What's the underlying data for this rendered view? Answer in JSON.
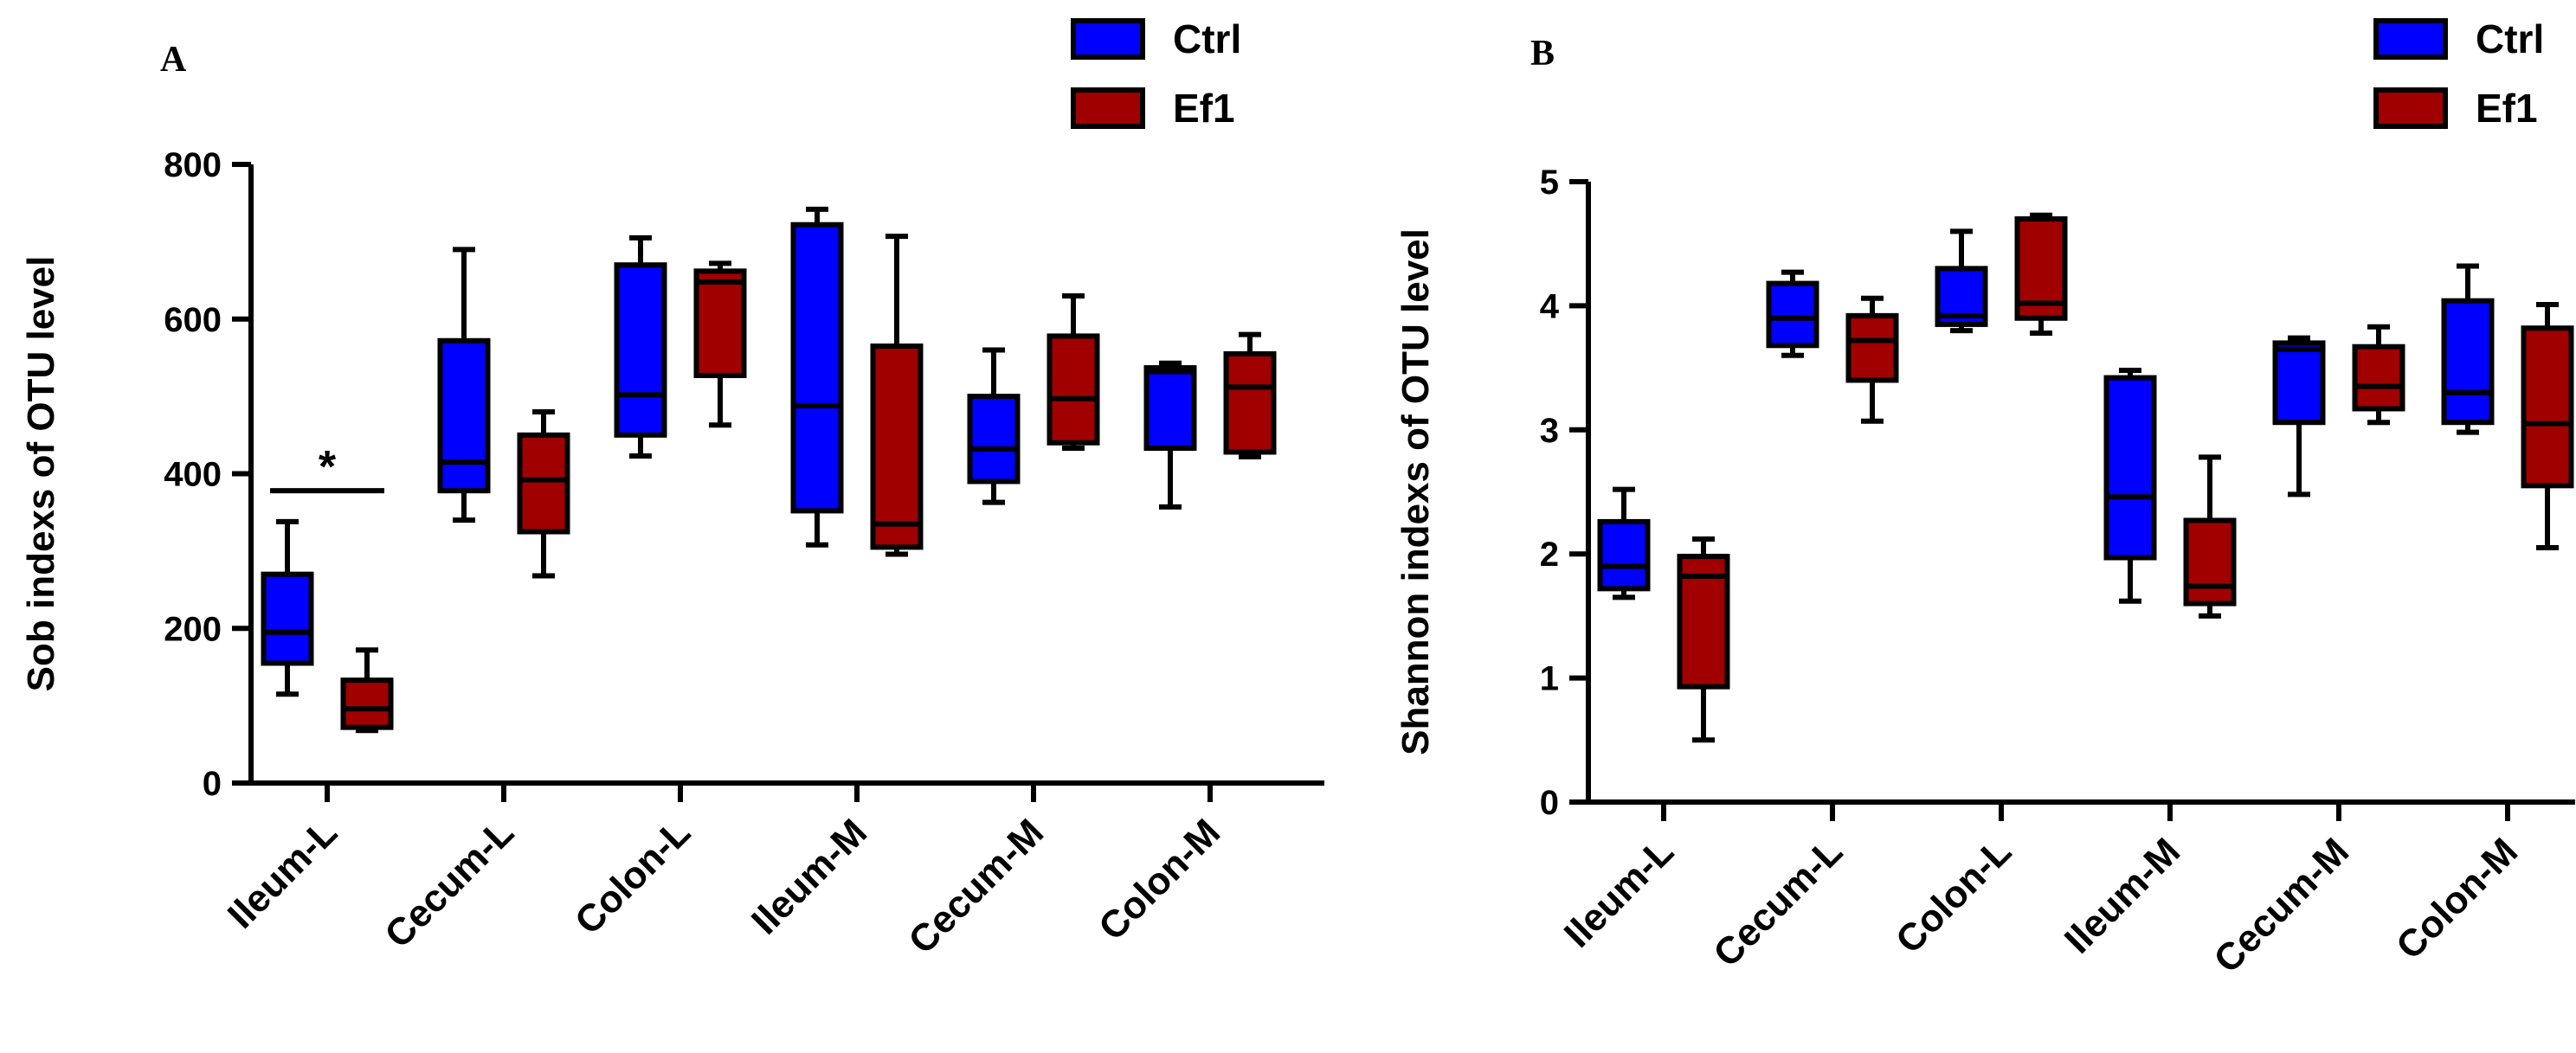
{
  "chart_data": [
    {
      "type": "boxplot",
      "panel": "A",
      "ylabel": "Sob indexs of OTU level",
      "ylim": [
        0,
        800
      ],
      "yticks": [
        0,
        200,
        400,
        600,
        800
      ],
      "categories": [
        "Ileum-L",
        "Cecum-L",
        "Colon-L",
        "Ileum-M",
        "Cecum-M",
        "Colon-M"
      ],
      "legend": {
        "position": "top-right",
        "entries": [
          "Ctrl",
          "Ef1"
        ]
      },
      "colors": {
        "Ctrl": "#0000FF",
        "Ef1": "#A00000"
      },
      "series": [
        {
          "name": "Ctrl",
          "boxes": [
            {
              "min": 115,
              "q1": 155,
              "median": 195,
              "q3": 270,
              "max": 338
            },
            {
              "min": 340,
              "q1": 378,
              "median": 415,
              "q3": 572,
              "max": 690
            },
            {
              "min": 423,
              "q1": 450,
              "median": 502,
              "q3": 670,
              "max": 705
            },
            {
              "min": 308,
              "q1": 352,
              "median": 488,
              "q3": 722,
              "max": 742
            },
            {
              "min": 363,
              "q1": 390,
              "median": 432,
              "q3": 500,
              "max": 560
            },
            {
              "min": 357,
              "q1": 433,
              "median": 532,
              "q3": 537,
              "max": 543
            }
          ]
        },
        {
          "name": "Ef1",
          "boxes": [
            {
              "min": 68,
              "q1": 72,
              "median": 96,
              "q3": 133,
              "max": 172
            },
            {
              "min": 268,
              "q1": 325,
              "median": 392,
              "q3": 450,
              "max": 480
            },
            {
              "min": 463,
              "q1": 527,
              "median": 648,
              "q3": 662,
              "max": 672
            },
            {
              "min": 296,
              "q1": 305,
              "median": 335,
              "q3": 565,
              "max": 707
            },
            {
              "min": 433,
              "q1": 440,
              "median": 497,
              "q3": 578,
              "max": 630
            },
            {
              "min": 422,
              "q1": 428,
              "median": 512,
              "q3": 555,
              "max": 580
            }
          ]
        }
      ],
      "annotations": [
        {
          "text": "*",
          "category": "Ileum-L",
          "bracket_y": 378
        }
      ]
    },
    {
      "type": "boxplot",
      "panel": "B",
      "ylabel": "Shannon indexs of OTU level",
      "ylim": [
        0,
        5
      ],
      "yticks": [
        0,
        1,
        2,
        3,
        4,
        5
      ],
      "categories": [
        "Ileum-L",
        "Cecum-L",
        "Colon-L",
        "Ileum-M",
        "Cecum-M",
        "Colon-M"
      ],
      "legend": {
        "position": "top-right",
        "entries": [
          "Ctrl",
          "Ef1"
        ]
      },
      "colors": {
        "Ctrl": "#0000FF",
        "Ef1": "#A00000"
      },
      "series": [
        {
          "name": "Ctrl",
          "boxes": [
            {
              "min": 1.65,
              "q1": 1.72,
              "median": 1.9,
              "q3": 2.26,
              "max": 2.52
            },
            {
              "min": 3.6,
              "q1": 3.68,
              "median": 3.9,
              "q3": 4.18,
              "max": 4.27
            },
            {
              "min": 3.8,
              "q1": 3.85,
              "median": 3.92,
              "q3": 4.3,
              "max": 4.6
            },
            {
              "min": 1.62,
              "q1": 1.97,
              "median": 2.46,
              "q3": 3.42,
              "max": 3.48
            },
            {
              "min": 2.48,
              "q1": 3.06,
              "median": 3.65,
              "q3": 3.7,
              "max": 3.74
            },
            {
              "min": 2.98,
              "q1": 3.06,
              "median": 3.3,
              "q3": 4.04,
              "max": 4.32
            }
          ]
        },
        {
          "name": "Ef1",
          "boxes": [
            {
              "min": 0.5,
              "q1": 0.93,
              "median": 1.82,
              "q3": 1.98,
              "max": 2.12
            },
            {
              "min": 3.07,
              "q1": 3.4,
              "median": 3.72,
              "q3": 3.92,
              "max": 4.06
            },
            {
              "min": 3.78,
              "q1": 3.9,
              "median": 4.02,
              "q3": 4.7,
              "max": 4.73
            },
            {
              "min": 1.5,
              "q1": 1.6,
              "median": 1.74,
              "q3": 2.27,
              "max": 2.78
            },
            {
              "min": 3.06,
              "q1": 3.17,
              "median": 3.35,
              "q3": 3.67,
              "max": 3.83
            },
            {
              "min": 2.05,
              "q1": 2.55,
              "median": 3.05,
              "q3": 3.82,
              "max": 4.01
            }
          ]
        }
      ]
    }
  ]
}
